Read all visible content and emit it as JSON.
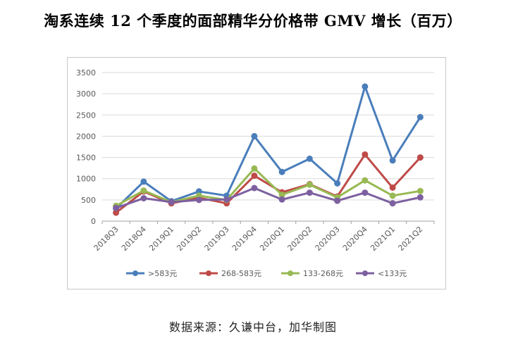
{
  "title": "淘系连续 12 个季度的面部精华分价格带 GMV 增长（百万）",
  "source": "数据来源：久谦中台，加华制图",
  "chart_data": {
    "type": "line",
    "categories": [
      "2018Q3",
      "2018Q4",
      "2019Q1",
      "2019Q2",
      "2019Q3",
      "2019Q4",
      "2020Q1",
      "2020Q2",
      "2020Q3",
      "2020Q4",
      "2021Q1",
      "2021Q2"
    ],
    "ylim": [
      0,
      3500
    ],
    "yticks": [
      0,
      500,
      1000,
      1500,
      2000,
      2500,
      3000,
      3500
    ],
    "grid": true,
    "legend": "bottom",
    "series": [
      {
        "name": ">583元",
        "color": "#4a7ebb",
        "values": [
          300,
          930,
          470,
          700,
          600,
          2000,
          1160,
          1470,
          890,
          3170,
          1430,
          2450
        ]
      },
      {
        "name": "268-583元",
        "color": "#be4b48",
        "values": [
          200,
          700,
          420,
          550,
          420,
          1070,
          680,
          870,
          580,
          1570,
          790,
          1500
        ]
      },
      {
        "name": "133-268元",
        "color": "#98b954",
        "values": [
          360,
          720,
          450,
          600,
          500,
          1240,
          620,
          860,
          560,
          960,
          600,
          710
        ]
      },
      {
        "name": "<133元",
        "color": "#7d60a0",
        "values": [
          310,
          540,
          450,
          500,
          510,
          780,
          510,
          670,
          480,
          670,
          420,
          560
        ]
      }
    ]
  }
}
